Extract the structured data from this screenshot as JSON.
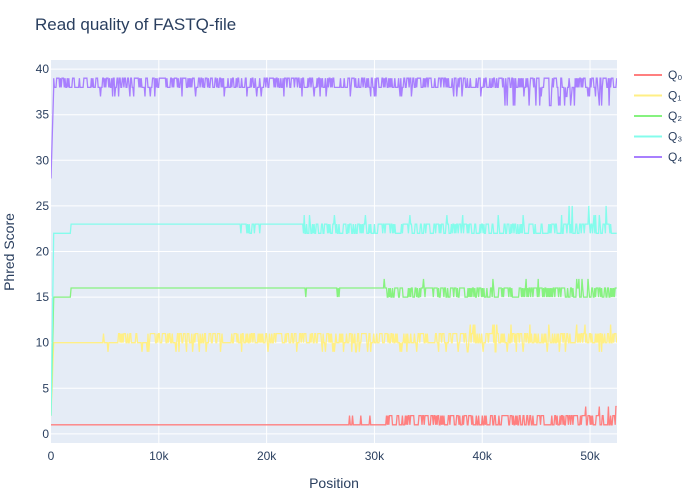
{
  "chart_data": {
    "type": "line",
    "title": "Read quality of FASTQ-file",
    "xlabel": "Position",
    "ylabel": "Phred Score",
    "xlim": [
      0,
      52500
    ],
    "ylim": [
      -1,
      41
    ],
    "x_ticks": [
      0,
      10000,
      20000,
      30000,
      40000,
      50000
    ],
    "x_tick_labels": [
      "0",
      "10k",
      "20k",
      "30k",
      "40k",
      "50k"
    ],
    "y_ticks": [
      0,
      5,
      10,
      15,
      20,
      25,
      30,
      35,
      40
    ],
    "y_tick_labels": [
      "0",
      "5",
      "10",
      "15",
      "20",
      "25",
      "30",
      "35",
      "40"
    ],
    "grid": true,
    "legend_position": "top-right",
    "series": [
      {
        "name": "Q₀",
        "color": "#ff7f7f",
        "start": 1,
        "base": 1,
        "noise_from": 23500,
        "noise_dense_from": 31000,
        "low": 1,
        "high": 2,
        "spike_high": 3,
        "spike_from": 46500
      },
      {
        "name": "Q₁",
        "color": "#ffef85",
        "start": 2,
        "base": 10,
        "noise_from": 2000,
        "noise_dense_from": 6000,
        "low": 10,
        "high": 11,
        "dip_low": 9,
        "spike_high": 12,
        "spike_from": 38000
      },
      {
        "name": "Q₂",
        "color": "#86f27f",
        "start": 2,
        "base": 15,
        "step_to": 16,
        "step_at": 1800,
        "noise_from": 23500,
        "noise_dense_from": 31000,
        "low": 15,
        "high": 16,
        "spike_high": 17,
        "spike_from": 26000
      },
      {
        "name": "Q₃",
        "color": "#84fcec",
        "start": 2,
        "base": 22,
        "step_to": 23,
        "step_at": 1800,
        "noise_from": 15000,
        "noise_dense_from": 23500,
        "low": 22,
        "high": 23,
        "spike_high": 24,
        "spike_from": 15000,
        "top_spike": 25,
        "top_spike_from": 46500
      },
      {
        "name": "Q₄",
        "color": "#a87ffe",
        "start": 28,
        "base": 38,
        "noise_from": 0,
        "noise_dense_from": 0,
        "low": 38,
        "high": 39,
        "dip_low": 37,
        "deep_dip": 36,
        "deep_dip_from": 42000
      }
    ]
  }
}
